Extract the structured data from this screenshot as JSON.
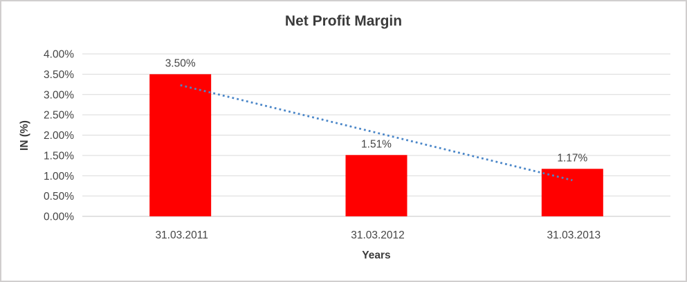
{
  "palette": {
    "background": "#ffffff",
    "border": "#d0cece",
    "text": "#444444",
    "title_text": "#3b3b3b",
    "gridline": "#d9d9d9",
    "axis_line": "#c6c6c6",
    "bar": "#ff0000",
    "trendline": "#4a86c8"
  },
  "chart_data": {
    "type": "bar",
    "title": "Net Profit Margin",
    "xlabel": "Years",
    "ylabel": "IN (%)",
    "categories": [
      "31.03.2011",
      "31.03.2012",
      "31.03.2013"
    ],
    "series": [
      {
        "name": "Net Profit Margin",
        "values": [
          3.5,
          1.51,
          1.17
        ]
      }
    ],
    "value_labels": [
      "3.50%",
      "1.51%",
      "1.17%"
    ],
    "ylim": [
      0,
      4.0
    ],
    "ytick_step": 0.5,
    "ytick_labels": [
      "0.00%",
      "0.50%",
      "1.00%",
      "1.50%",
      "2.00%",
      "2.50%",
      "3.00%",
      "3.50%",
      "4.00%"
    ],
    "grid": true,
    "legend": "none",
    "trendline": {
      "type": "linear",
      "dotted": true,
      "start_value": 3.23,
      "end_value": 0.89
    }
  }
}
